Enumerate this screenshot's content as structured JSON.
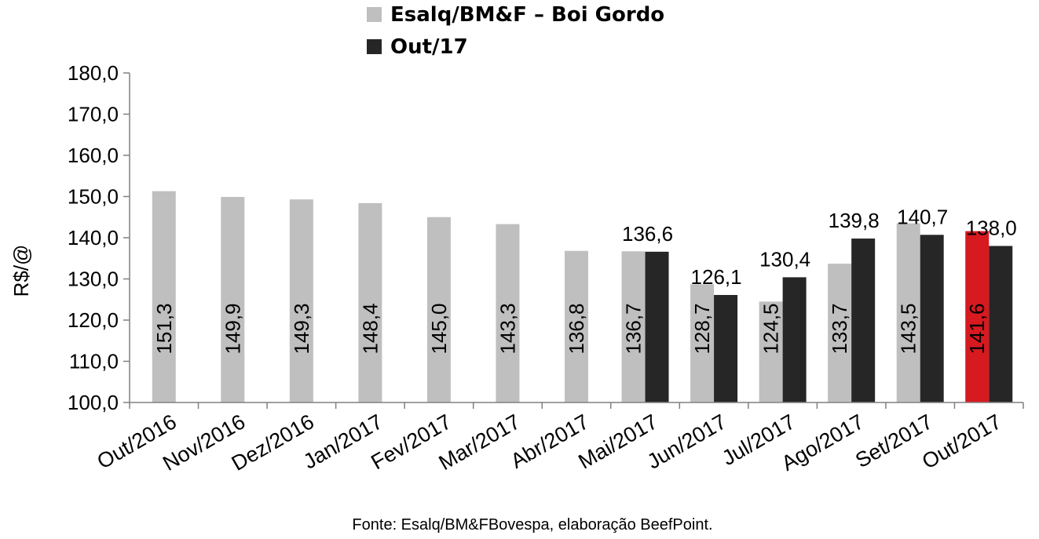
{
  "chart_data": {
    "type": "bar",
    "categories": [
      "Out/2016",
      "Nov/2016",
      "Dez/2016",
      "Jan/2017",
      "Fev/2017",
      "Mar/2017",
      "Abr/2017",
      "Mai/2017",
      "Jun/2017",
      "Jul/2017",
      "Ago/2017",
      "Set/2017",
      "Out/2017"
    ],
    "series": [
      {
        "name": "Esalq/BM&F – Boi Gordo",
        "color": "#bfbfbf",
        "values": [
          151.3,
          149.9,
          149.3,
          148.4,
          145.0,
          143.3,
          136.8,
          136.7,
          128.7,
          124.5,
          133.7,
          143.5,
          141.6
        ],
        "labels": [
          "151,3",
          "149,9",
          "149,3",
          "148,4",
          "145,0",
          "143,3",
          "136,8",
          "136,7",
          "128,7",
          "124,5",
          "133,7",
          "143,5",
          "141,6"
        ],
        "highlight": {
          "index": 12,
          "color": "#d71920"
        }
      },
      {
        "name": "Out/17",
        "color": "#262626",
        "values": [
          null,
          null,
          null,
          null,
          null,
          null,
          null,
          136.6,
          126.1,
          130.4,
          139.8,
          140.7,
          138.0
        ],
        "labels": [
          null,
          null,
          null,
          null,
          null,
          null,
          null,
          "136,6",
          "126,1",
          "130,4",
          "139,8",
          "140,7",
          "138,0"
        ]
      }
    ],
    "ylabel": "R$/@",
    "ylim": [
      100,
      180
    ],
    "yticks": [
      "100,0",
      "110,0",
      "120,0",
      "130,0",
      "140,0",
      "150,0",
      "160,0",
      "170,0",
      "180,0"
    ],
    "legend_position": "top",
    "grid": false,
    "source": "Fonte: Esalq/BM&FBovespa, elaboração BeefPoint."
  }
}
